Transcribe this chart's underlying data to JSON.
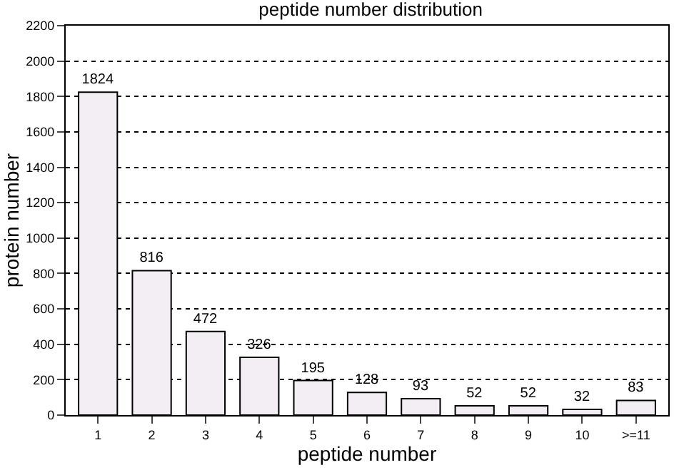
{
  "chart_data": {
    "type": "bar",
    "title": "peptide number distribution",
    "xlabel": "peptide number",
    "ylabel": "protein number",
    "categories": [
      "1",
      "2",
      "3",
      "4",
      "5",
      "6",
      "7",
      "8",
      "9",
      "10",
      ">=11"
    ],
    "values": [
      1824,
      816,
      472,
      326,
      195,
      128,
      93,
      52,
      52,
      32,
      83
    ],
    "color": "#f3eef3",
    "data_labels": true,
    "grid": "y",
    "line_style": "dotted",
    "ylim": [
      0,
      2200
    ],
    "yticks": [
      0,
      200,
      400,
      600,
      800,
      1000,
      1200,
      1400,
      1600,
      1800,
      2000,
      2200
    ]
  }
}
